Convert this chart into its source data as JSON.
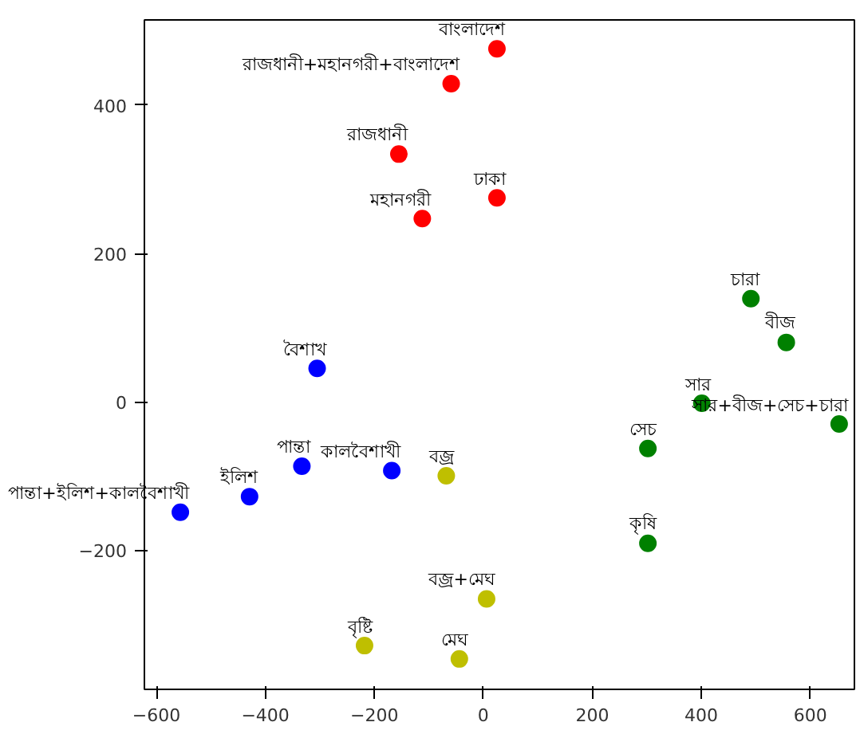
{
  "chart_data": {
    "type": "scatter",
    "xlim": [
      -622,
      681
    ],
    "ylim": [
      -388,
      515
    ],
    "xticks": [
      {
        "value": -600,
        "label": "−600"
      },
      {
        "value": -400,
        "label": "−400"
      },
      {
        "value": -200,
        "label": "−200"
      },
      0,
      200,
      400,
      600
    ],
    "yticks": [
      {
        "value": -200,
        "label": "−200"
      },
      0,
      200,
      400
    ],
    "grid": false,
    "marker": "circle",
    "series": [
      {
        "color": "#ff0000",
        "x": [
          25,
          -59,
          -155,
          25,
          -112
        ],
        "values": [
          476,
          429,
          334,
          275,
          247
        ]
      },
      {
        "color": "#0000ff",
        "x": [
          -305,
          -556,
          -429,
          -333,
          -168
        ],
        "values": [
          45,
          -149,
          -128,
          -87,
          -93
        ]
      },
      {
        "color": "#bfbf00",
        "x": [
          -68,
          6,
          -218,
          -44
        ],
        "values": [
          -100,
          -266,
          -329,
          -347
        ]
      },
      {
        "color": "#008000",
        "x": [
          491,
          556,
          401,
          653,
          302,
          302
        ],
        "values": [
          139,
          80,
          -2,
          -30,
          -63,
          -191
        ]
      }
    ],
    "annotations": [
      {
        "text": "বাংলাদেশ",
        "x": 25,
        "y": 476
      },
      {
        "text": "রাজধানী+মহানগরী+বাংলাদেশ",
        "x": -59,
        "y": 429
      },
      {
        "text": "রাজধানী",
        "x": -155,
        "y": 334
      },
      {
        "text": "ঢাকা",
        "x": 25,
        "y": 275
      },
      {
        "text": "মহানগরী",
        "x": -112,
        "y": 247
      },
      {
        "text": "বৈশাখ",
        "x": -305,
        "y": 45
      },
      {
        "text": "পান্তা+ইলিশ+কালবৈশাখী",
        "x": -556,
        "y": -149
      },
      {
        "text": "ইলিশ",
        "x": -429,
        "y": -128
      },
      {
        "text": "পান্তা",
        "x": -333,
        "y": -87
      },
      {
        "text": "কালবৈশাখী",
        "x": -168,
        "y": -93
      },
      {
        "text": "বজ্র",
        "x": -68,
        "y": -100
      },
      {
        "text": "বজ্র+মেঘ",
        "x": 6,
        "y": -266
      },
      {
        "text": "বৃষ্টি",
        "x": -218,
        "y": -329
      },
      {
        "text": "মেঘ",
        "x": -44,
        "y": -347
      },
      {
        "text": "চারা",
        "x": 491,
        "y": 139
      },
      {
        "text": "বীজ",
        "x": 556,
        "y": 80
      },
      {
        "text": "সার",
        "x": 401,
        "y": -2
      },
      {
        "text": "সার+বীজ+সেচ+চারা",
        "x": 653,
        "y": -30
      },
      {
        "text": "সেচ",
        "x": 302,
        "y": -63
      },
      {
        "text": "কৃষি",
        "x": 302,
        "y": -191
      }
    ]
  }
}
